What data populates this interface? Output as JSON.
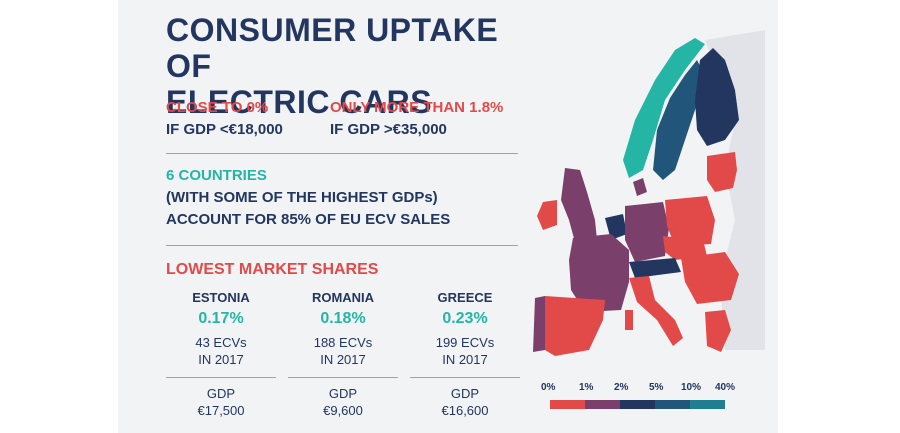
{
  "title": {
    "line1": "CONSUMER UPTAKE OF",
    "line2": "ELECTRIC CARS"
  },
  "stats": [
    {
      "head": "CLOSE TO 0%",
      "sub": "IF GDP <€18,000"
    },
    {
      "head": "ONLY MORE THAN 1.8%",
      "sub": "IF GDP >€35,000"
    }
  ],
  "six": {
    "head": "6 COUNTRIES",
    "line2": "(WITH SOME OF THE HIGHEST GDPs)",
    "line3": "ACCOUNT FOR 85% OF EU ECV SALES"
  },
  "lowest": {
    "heading": "LOWEST MARKET SHARES",
    "countries": [
      {
        "name": "ESTONIA",
        "share": "0.17%",
        "ecvs": "43 ECVs",
        "year": "IN 2017",
        "gdp_label": "GDP",
        "gdp": "€17,500"
      },
      {
        "name": "ROMANIA",
        "share": "0.18%",
        "ecvs": "188 ECVs",
        "year": "IN 2017",
        "gdp_label": "GDP",
        "gdp": "€9,600"
      },
      {
        "name": "GREECE",
        "share": "0.23%",
        "ecvs": "199 ECVs",
        "year": "IN 2017",
        "gdp_label": "GDP",
        "gdp": "€16,600"
      }
    ]
  },
  "legend": {
    "labels": [
      "0%",
      "1%",
      "2%",
      "5%",
      "10%",
      "40%"
    ],
    "colors": [
      "#e24a4a",
      "#7a3f6a",
      "#22365f",
      "#21557a",
      "#1f7f91",
      "#25b5a5"
    ]
  }
}
